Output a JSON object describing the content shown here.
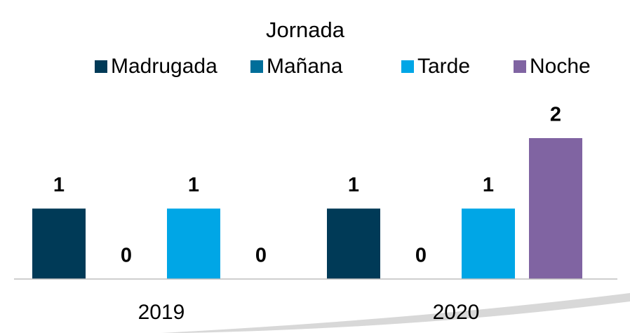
{
  "chart_data": {
    "type": "bar",
    "title": "Jornada",
    "categories": [
      "2019",
      "2020"
    ],
    "series": [
      {
        "name": "Madrugada",
        "color": "#003a57",
        "values": [
          1,
          1
        ]
      },
      {
        "name": "Mañana",
        "color": "#006e9a",
        "values": [
          0,
          0
        ]
      },
      {
        "name": "Tarde",
        "color": "#00a6e6",
        "values": [
          1,
          1
        ]
      },
      {
        "name": "Noche",
        "color": "#8064a2",
        "values": [
          0,
          2
        ]
      }
    ],
    "ylim": [
      0,
      2
    ]
  }
}
